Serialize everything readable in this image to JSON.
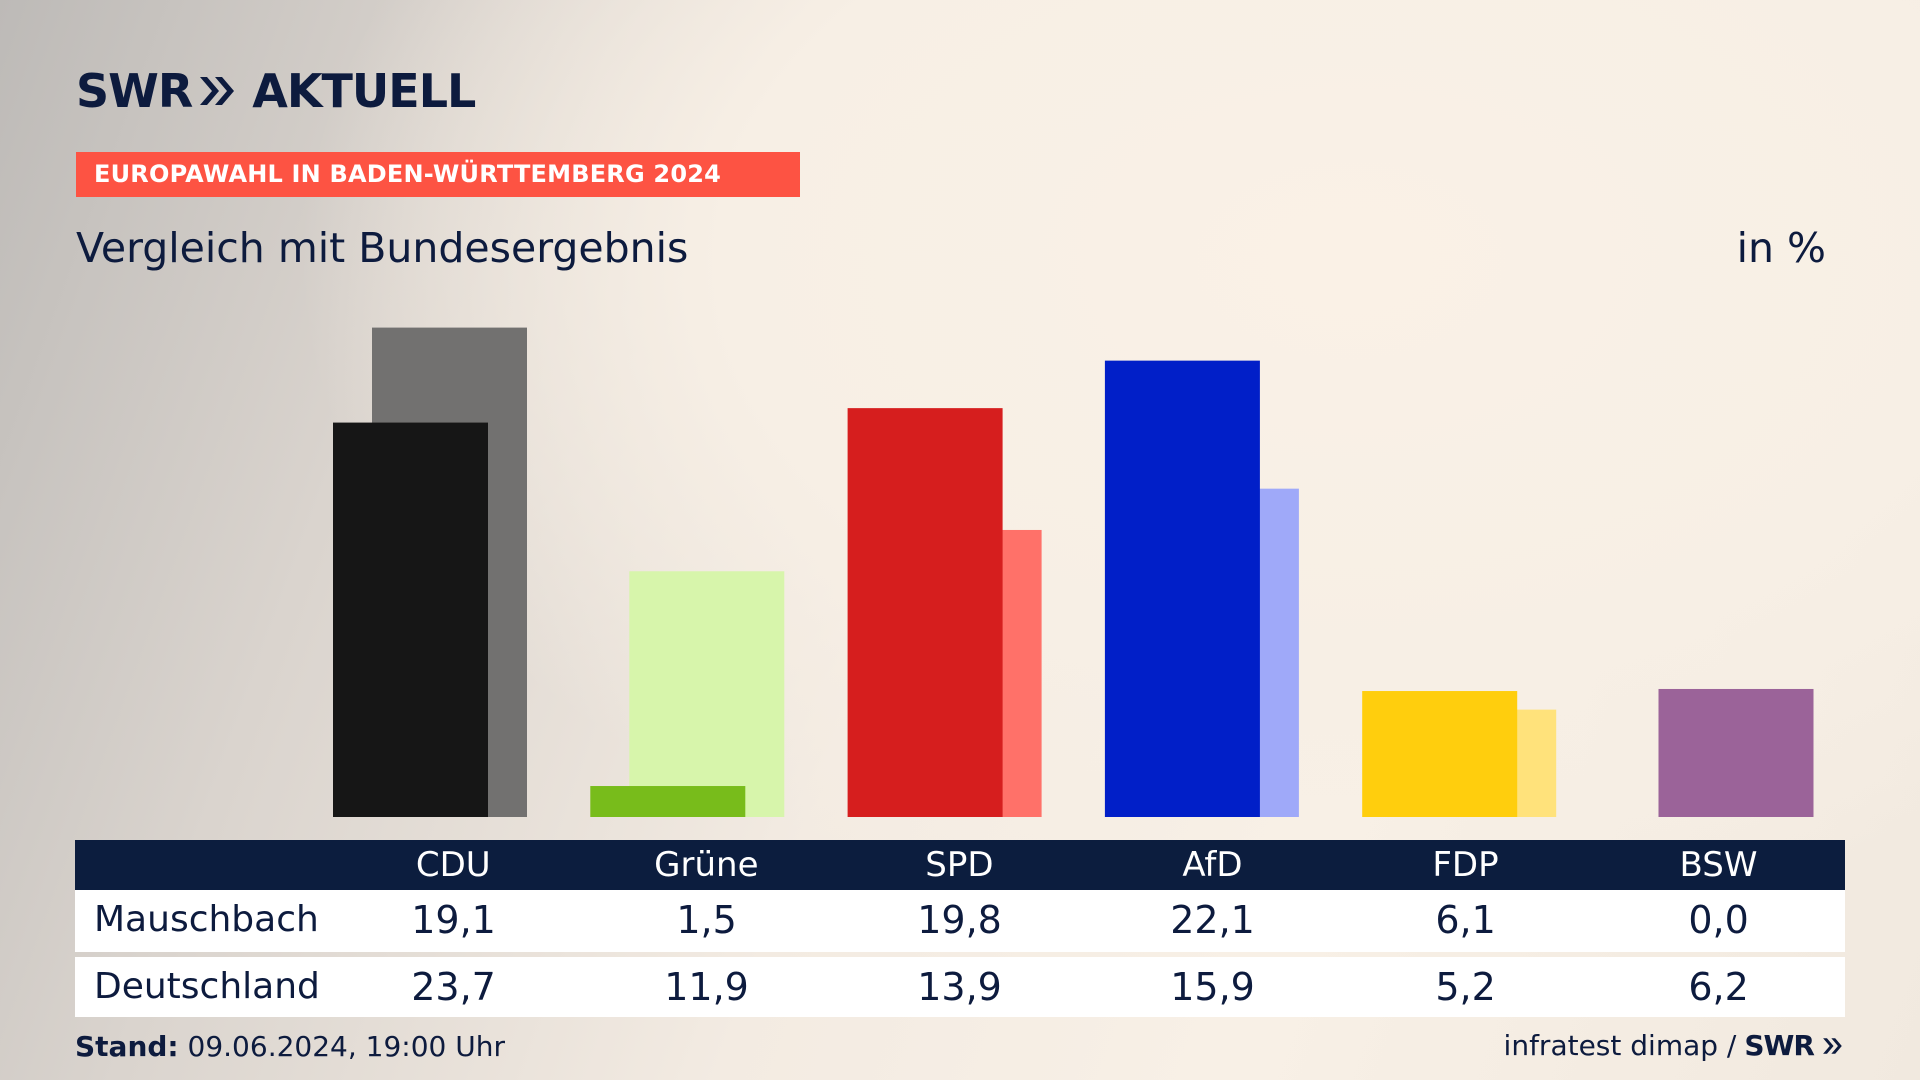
{
  "header": {
    "logo_brand": "SWR",
    "logo_product": "AKTUELL",
    "tag": "EUROPAWAHL IN BADEN-WÜRTTEMBERG 2024",
    "subtitle": "Vergleich mit Bundesergebnis",
    "unit": "in %"
  },
  "colors": {
    "tag_background": "#fd5343",
    "navy": "#0c1d3e"
  },
  "chart_data": {
    "type": "bar",
    "title": "Vergleich mit Bundesergebnis",
    "ylabel": "in %",
    "ylim": [
      0,
      25
    ],
    "categories": [
      "CDU",
      "Grüne",
      "SPD",
      "AfD",
      "FDP",
      "BSW"
    ],
    "series": [
      {
        "name": "Mauschbach",
        "values": [
          19.1,
          1.5,
          19.8,
          22.1,
          6.1,
          0.0
        ],
        "colors": [
          "#161616",
          "#78bc1b",
          "#d61e1e",
          "#011fc8",
          "#ffce0d",
          "#9b6399"
        ]
      },
      {
        "name": "Deutschland",
        "values": [
          23.7,
          11.9,
          13.9,
          15.9,
          5.2,
          6.2
        ],
        "colors": [
          "#727170",
          "#d7f5ab",
          "#ff7169",
          "#9fa9f9",
          "#ffe27b",
          "#9b6399"
        ]
      }
    ],
    "legend": "none",
    "grid": false
  },
  "table": {
    "rows": [
      {
        "label": "Mauschbach",
        "values": [
          "19,1",
          "1,5",
          "19,8",
          "22,1",
          "6,1",
          "0,0"
        ]
      },
      {
        "label": "Deutschland",
        "values": [
          "23,7",
          "11,9",
          "13,9",
          "15,9",
          "5,2",
          "6,2"
        ]
      }
    ]
  },
  "footer": {
    "stand_label": "Stand:",
    "stand_value": "09.06.2024, 19:00 Uhr",
    "source": "infratest dimap /",
    "source_logo": "SWR"
  }
}
